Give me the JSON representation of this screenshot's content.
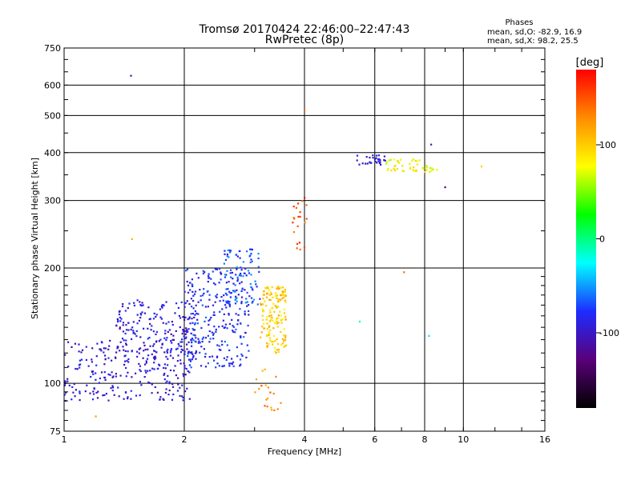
{
  "header": {
    "title_line1": "Tromsø 20170424 22:46:00–22:47:43",
    "title_line2": "RwPretec (8p)",
    "stats_title": "Phases",
    "stats_o": "mean, sd,O: -82.9, 16.9",
    "stats_x": "mean, sd,X: 98.2, 25.5"
  },
  "colorbar": {
    "unit_label": "[deg]",
    "tick_labels": [
      "100",
      "0",
      "-100"
    ],
    "tick_values": [
      100,
      0,
      -100
    ],
    "range": [
      -180,
      180
    ],
    "colors": [
      "#000000",
      "#5a007a",
      "#1e2cff",
      "#00ffff",
      "#00ff00",
      "#ffff00",
      "#ff8c00",
      "#ff0000"
    ]
  },
  "chart_data": {
    "type": "scatter",
    "title": "Tromsø 20170424 22:46:00–22:47:43",
    "subtitle": "RwPretec (8p)",
    "xlabel": "Frequency [MHz]",
    "ylabel": "Stationary phase Virtual Height [km]",
    "xscale": "log",
    "yscale": "log",
    "xlim": [
      1,
      16
    ],
    "ylim": [
      75,
      750
    ],
    "xticks": [
      1,
      2,
      4,
      6,
      8,
      10,
      16
    ],
    "xtick_labels": [
      "1",
      "2",
      "4",
      "6",
      "8",
      "10",
      "16"
    ],
    "yticks": [
      75,
      100,
      200,
      300,
      400,
      500,
      600,
      750
    ],
    "ytick_labels": [
      "75",
      "100",
      "200",
      "300",
      "400",
      "500",
      "600",
      "750"
    ],
    "grid": true,
    "color_by": "phase [deg]",
    "clusters": [
      {
        "f_range": [
          1.0,
          2.1
        ],
        "h_range": [
          90,
          130
        ],
        "phase": -95,
        "count": 260
      },
      {
        "f_range": [
          1.35,
          2.2
        ],
        "h_range": [
          120,
          165
        ],
        "phase": -93,
        "count": 180
      },
      {
        "f_range": [
          2.0,
          2.9
        ],
        "h_range": [
          110,
          200
        ],
        "phase": -80,
        "count": 260
      },
      {
        "f_range": [
          2.5,
          3.1
        ],
        "h_range": [
          160,
          225
        ],
        "phase": -70,
        "count": 80
      },
      {
        "f_range": [
          3.1,
          3.6
        ],
        "h_range": [
          120,
          180
        ],
        "phase": 100,
        "count": 160
      },
      {
        "f_range": [
          3.0,
          3.5
        ],
        "h_range": [
          85,
          110
        ],
        "phase": 130,
        "count": 20
      },
      {
        "f_range": [
          3.7,
          4.1
        ],
        "h_range": [
          220,
          300
        ],
        "phase": 150,
        "count": 20
      },
      {
        "f_range": [
          5.4,
          6.4
        ],
        "h_range": [
          370,
          395
        ],
        "phase": -95,
        "count": 30
      },
      {
        "f_range": [
          6.4,
          8.6
        ],
        "h_range": [
          355,
          385
        ],
        "phase": 80,
        "count": 50
      }
    ],
    "isolated_points": [
      {
        "x": 1.47,
        "y": 635,
        "phase": -100
      },
      {
        "x": 1.48,
        "y": 238,
        "phase": 110
      },
      {
        "x": 1.38,
        "y": 140,
        "phase": -120
      },
      {
        "x": 4.0,
        "y": 515,
        "phase": 140
      },
      {
        "x": 4.0,
        "y": 305,
        "phase": 175
      },
      {
        "x": 8.3,
        "y": 420,
        "phase": -100
      },
      {
        "x": 9.0,
        "y": 325,
        "phase": -130
      },
      {
        "x": 11.1,
        "y": 368,
        "phase": 100
      },
      {
        "x": 7.1,
        "y": 195,
        "phase": 140
      },
      {
        "x": 5.5,
        "y": 145,
        "phase": -10
      },
      {
        "x": 8.2,
        "y": 133,
        "phase": -30
      },
      {
        "x": 1.2,
        "y": 82,
        "phase": 120
      }
    ]
  }
}
